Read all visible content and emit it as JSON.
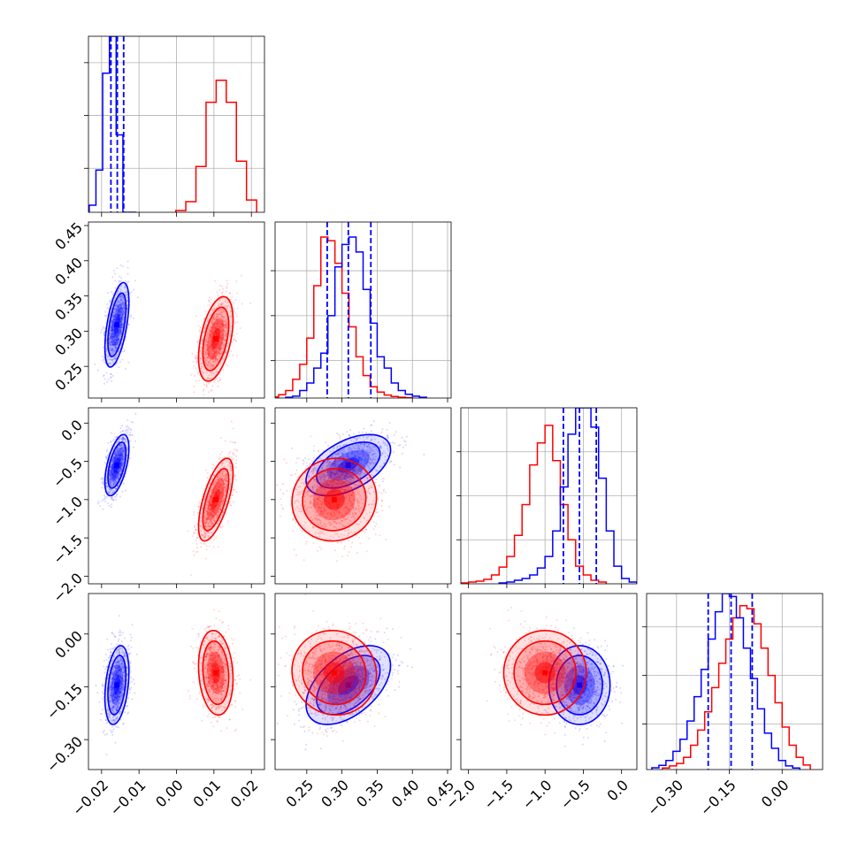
{
  "chart_data": {
    "type": "corner",
    "parameters": [
      {
        "range": [
          -0.0235,
          0.0235
        ],
        "ticks": [
          -0.02,
          -0.01,
          0.0,
          0.01,
          0.02
        ],
        "tick_labels": [
          "−0.02",
          "−0.01",
          "0.00",
          "0.01",
          "0.02"
        ]
      },
      {
        "range": [
          0.205,
          0.455
        ],
        "ticks": [
          0.25,
          0.3,
          0.35,
          0.4,
          0.45
        ],
        "tick_labels": [
          "0.25",
          "0.30",
          "0.35",
          "0.40",
          "0.45"
        ]
      },
      {
        "range": [
          -2.1,
          0.2
        ],
        "ticks": [
          -2.0,
          -1.5,
          -1.0,
          -0.5,
          0.0
        ],
        "tick_labels": [
          "−2.0",
          "−1.5",
          "−1.0",
          "−0.5",
          "0.0"
        ]
      },
      {
        "range": [
          -0.385,
          0.115
        ],
        "ticks": [
          -0.3,
          -0.15,
          0.0
        ],
        "tick_labels": [
          "−0.30",
          "−0.15",
          "0.00"
        ]
      }
    ],
    "histogram_max": [
      0.2,
      0.047,
      0.2,
      0.058
    ],
    "histogram_ticks": [
      [
        0.05,
        0.11,
        0.17
      ],
      [
        0.01,
        0.022,
        0.034
      ],
      [
        0.05,
        0.1,
        0.15
      ],
      [
        0.015,
        0.031,
        0.047
      ]
    ],
    "quantiles": {
      "color": "#0000ff",
      "values": [
        [
          -0.0175,
          -0.0158,
          -0.0141
        ],
        [
          0.279,
          0.309,
          0.341
        ],
        [
          -0.76,
          -0.55,
          -0.33
        ],
        [
          -0.21,
          -0.145,
          -0.085
        ]
      ]
    },
    "series": [
      {
        "color": "#0000ff",
        "means": [
          -0.0159,
          0.309,
          -0.55,
          -0.145
        ],
        "sds": [
          0.0016,
          0.03,
          0.2,
          0.056
        ],
        "correlations": [
          [
            0,
            1,
            2,
            3
          ],
          [
            1,
            0.55,
            0.32
          ],
          [
            2,
            0.55,
            0.5
          ],
          [
            3,
            0.32,
            0.5
          ]
        ],
        "histograms": [
          {
            "edges": [
              -0.0233,
              -0.0215,
              -0.0197,
              -0.0179,
              -0.0161,
              -0.0143,
              -0.0125,
              -0.0107
            ],
            "values": [
              0.008,
              0.048,
              0.158,
              0.2,
              0.088,
              0.0,
              0.0
            ]
          },
          {
            "edges": [
              0.22,
              0.23,
              0.24,
              0.25,
              0.26,
              0.27,
              0.28,
              0.29,
              0.3,
              0.31,
              0.32,
              0.33,
              0.34,
              0.35,
              0.36,
              0.37,
              0.38,
              0.39,
              0.4,
              0.41,
              0.42
            ],
            "values": [
              0.0002,
              0.0005,
              0.002,
              0.004,
              0.008,
              0.012,
              0.022,
              0.035,
              0.041,
              0.043,
              0.039,
              0.029,
              0.02,
              0.011,
              0.008,
              0.004,
              0.002,
              0.001,
              0.0005,
              0.0002
            ]
          },
          {
            "edges": [
              -1.6,
              -1.5,
              -1.4,
              -1.3,
              -1.2,
              -1.1,
              -1.0,
              -0.9,
              -0.8,
              -0.7,
              -0.6,
              -0.5,
              -0.4,
              -0.3,
              -0.2,
              -0.1,
              0.0,
              0.1,
              0.2
            ],
            "values": [
              0.001,
              0.002,
              0.004,
              0.006,
              0.01,
              0.018,
              0.031,
              0.06,
              0.11,
              0.17,
              0.2,
              0.2,
              0.178,
              0.12,
              0.06,
              0.02,
              0.006,
              0.002
            ]
          },
          {
            "edges": [
              -0.37,
              -0.35,
              -0.33,
              -0.31,
              -0.29,
              -0.27,
              -0.25,
              -0.23,
              -0.21,
              -0.19,
              -0.17,
              -0.15,
              -0.13,
              -0.11,
              -0.09,
              -0.07,
              -0.05,
              -0.03,
              -0.01,
              0.01,
              0.03,
              0.05
            ],
            "values": [
              0.0006,
              0.0014,
              0.003,
              0.006,
              0.01,
              0.016,
              0.024,
              0.033,
              0.043,
              0.052,
              0.058,
              0.057,
              0.05,
              0.04,
              0.03,
              0.02,
              0.012,
              0.007,
              0.003,
              0.0012,
              0.0005
            ]
          }
        ]
      },
      {
        "color": "#ff0000",
        "means": [
          0.0105,
          0.289,
          -1.0,
          -0.11
        ],
        "sds": [
          0.0023,
          0.03,
          0.27,
          0.06
        ],
        "correlations": [
          [
            0,
            1,
            2,
            3
          ],
          [
            1,
            0.45,
            0.05
          ],
          [
            2,
            0.65,
            0.05
          ],
          [
            3,
            -0.15,
            -0.05
          ]
        ],
        "histograms": [
          {
            "edges": [
              -0.0002,
              0.0025,
              0.0052,
              0.0079,
              0.0106,
              0.0133,
              0.016,
              0.0187,
              0.0214
            ],
            "values": [
              0.002,
              0.012,
              0.052,
              0.125,
              0.15,
              0.125,
              0.058,
              0.014
            ]
          },
          {
            "edges": [
              0.2,
              0.21,
              0.22,
              0.23,
              0.24,
              0.25,
              0.26,
              0.27,
              0.28,
              0.29,
              0.3,
              0.31,
              0.32,
              0.33,
              0.34,
              0.35,
              0.36,
              0.37,
              0.38,
              0.39,
              0.4
            ],
            "values": [
              0.0003,
              0.0009,
              0.002,
              0.005,
              0.009,
              0.016,
              0.03,
              0.043,
              0.042,
              0.036,
              0.028,
              0.019,
              0.011,
              0.006,
              0.003,
              0.0016,
              0.0008,
              0.0004,
              0.0002,
              0.0001
            ]
          },
          {
            "edges": [
              -2.1,
              -2.0,
              -1.9,
              -1.8,
              -1.7,
              -1.6,
              -1.5,
              -1.4,
              -1.3,
              -1.2,
              -1.1,
              -1.0,
              -0.9,
              -0.8,
              -0.7,
              -0.6,
              -0.5,
              -0.4,
              -0.3,
              -0.2
            ],
            "values": [
              0.001,
              0.002,
              0.003,
              0.005,
              0.01,
              0.019,
              0.031,
              0.055,
              0.09,
              0.135,
              0.16,
              0.18,
              0.14,
              0.09,
              0.05,
              0.02,
              0.01,
              0.004,
              0.002
            ]
          },
          {
            "edges": [
              -0.34,
              -0.32,
              -0.3,
              -0.28,
              -0.26,
              -0.24,
              -0.22,
              -0.2,
              -0.18,
              -0.16,
              -0.14,
              -0.12,
              -0.1,
              -0.08,
              -0.06,
              -0.04,
              -0.02,
              0.0,
              0.02,
              0.04,
              0.06,
              0.08
            ],
            "values": [
              0.0005,
              0.0012,
              0.002,
              0.004,
              0.008,
              0.013,
              0.019,
              0.027,
              0.035,
              0.043,
              0.05,
              0.054,
              0.053,
              0.048,
              0.04,
              0.031,
              0.022,
              0.014,
              0.008,
              0.004,
              0.0015
            ]
          }
        ]
      }
    ]
  }
}
